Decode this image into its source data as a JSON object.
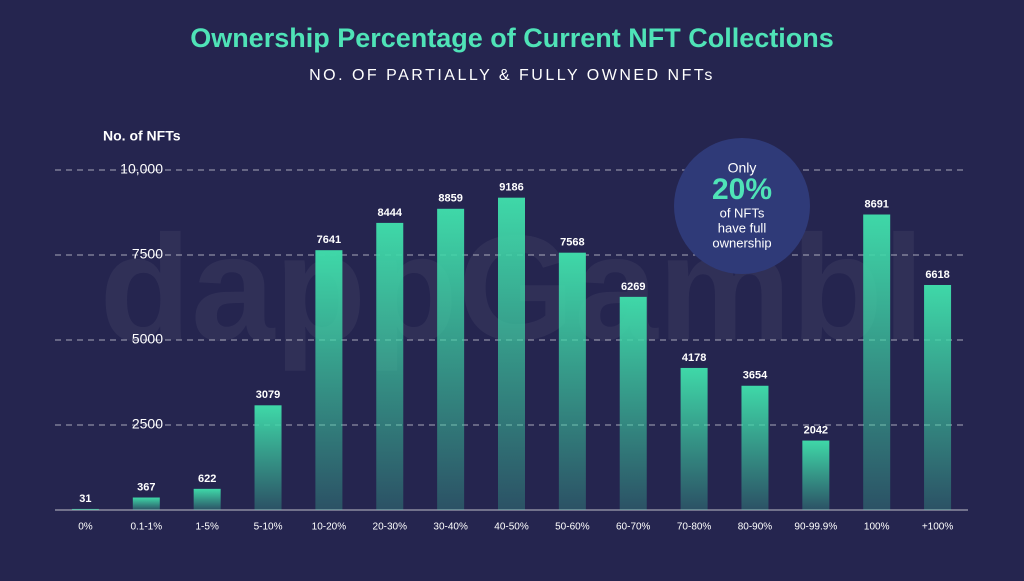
{
  "chart_data": {
    "type": "bar",
    "title": "Ownership Percentage of Current NFT Collections",
    "subtitle": "NO. OF PARTIALLY & FULLY OWNED NFTs",
    "y_label": "No. of NFTs",
    "watermark": "dappGambl",
    "annotation": {
      "line1": "Only",
      "highlight": "20%",
      "line2": "of NFTs",
      "line3": "have full",
      "line4": "ownership"
    },
    "categories": [
      "0%",
      "0.1-1%",
      "1-5%",
      "5-10%",
      "10-20%",
      "20-30%",
      "30-40%",
      "40-50%",
      "50-60%",
      "60-70%",
      "70-80%",
      "80-90%",
      "90-99.9%",
      "100%",
      "+100%"
    ],
    "values": [
      31,
      367,
      622,
      3079,
      7641,
      8444,
      8859,
      9186,
      7568,
      6269,
      4178,
      3654,
      2042,
      8691,
      6618
    ],
    "color": "#3fd8a8",
    "ylim": [
      0,
      10000
    ],
    "yticks": [
      2500,
      5000,
      7500,
      {
        "value": 10000,
        "label": "10,000"
      }
    ],
    "grid": true
  }
}
